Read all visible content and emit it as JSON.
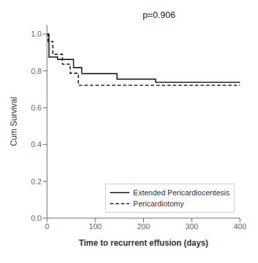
{
  "chart_data": {
    "type": "step",
    "annotation": "p=0.906",
    "xlabel": "Time to recurrent effusion  (days)",
    "ylabel": "Cum Survival",
    "xlim": [
      0,
      400
    ],
    "ylim": [
      0.0,
      1.05
    ],
    "xticks": [
      0,
      100,
      200,
      300,
      400
    ],
    "yticks": [
      {
        "value": 0.0,
        "label": "0.0"
      },
      0.2,
      0.4,
      0.6,
      0.8,
      {
        "value": 1.0,
        "label": "1.0"
      }
    ],
    "grid": false,
    "legend": "lower right",
    "series": [
      {
        "name": "Extended Pericardiocentesis",
        "color": "#1a1a1a",
        "line_style": "solid",
        "x": [
          0,
          4,
          4,
          22,
          22,
          55,
          55,
          72,
          72,
          145,
          145,
          225,
          225,
          400
        ],
        "values": [
          1.0,
          1.0,
          0.875,
          0.875,
          0.862,
          0.862,
          0.818,
          0.818,
          0.785,
          0.785,
          0.755,
          0.755,
          0.738,
          0.738
        ]
      },
      {
        "name": "Pericardiotomy",
        "color": "#1a1a1a",
        "line_style": "dashed",
        "x": [
          0,
          2,
          2,
          12,
          12,
          32,
          32,
          48,
          48,
          65,
          65,
          400
        ],
        "values": [
          1.0,
          1.0,
          0.96,
          0.96,
          0.89,
          0.89,
          0.836,
          0.836,
          0.787,
          0.787,
          0.722,
          0.722
        ]
      }
    ]
  }
}
